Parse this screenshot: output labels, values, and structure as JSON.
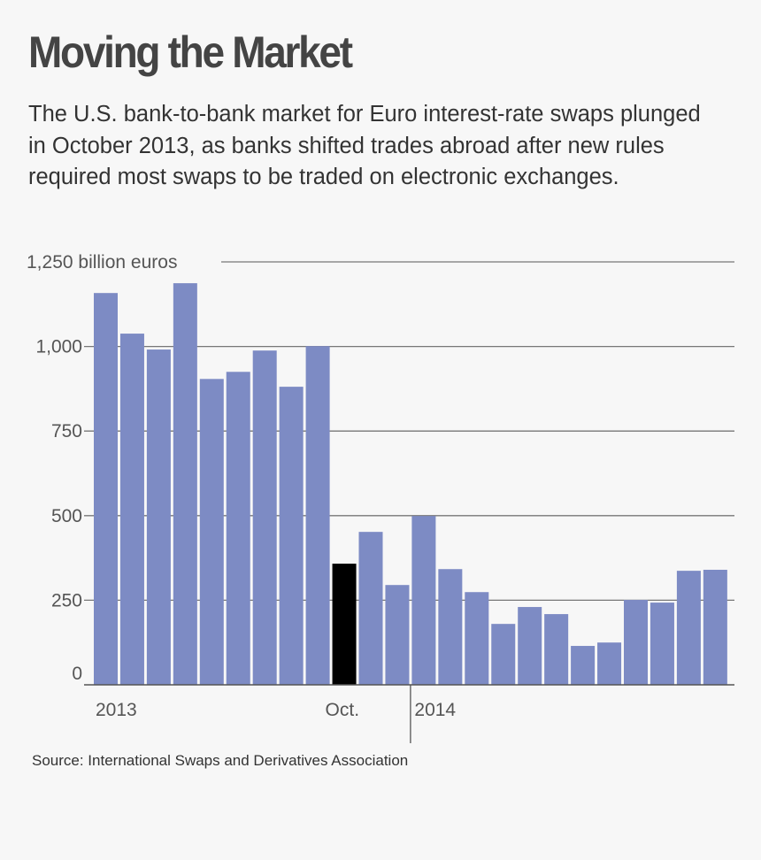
{
  "chart_data": {
    "type": "bar",
    "title": "Moving the Market",
    "subtitle": "The U.S. bank-to-bank market for Euro interest-rate swaps plunged in October 2013, as banks shifted trades abroad after new rules required most swaps to be traded on electronic exchanges.",
    "ylabel": "",
    "xlabel": "",
    "ylim": [
      0,
      1250
    ],
    "yticks": [
      {
        "value": 0,
        "label": "0"
      },
      {
        "value": 250,
        "label": "250"
      },
      {
        "value": 500,
        "label": "500"
      },
      {
        "value": 750,
        "label": "750"
      },
      {
        "value": 1000,
        "label": "1,000"
      },
      {
        "value": 1250,
        "label": "1,250 billion euros"
      }
    ],
    "grid": true,
    "categories": [
      "Jan 2013",
      "Feb 2013",
      "Mar 2013",
      "Apr 2013",
      "May 2013",
      "Jun 2013",
      "Jul 2013",
      "Aug 2013",
      "Sep 2013",
      "Oct 2013",
      "Nov 2013",
      "Dec 2013",
      "Jan 2014",
      "Feb 2014",
      "Mar 2014",
      "Apr 2014",
      "May 2014",
      "Jun 2014",
      "Jul 2014",
      "Aug 2014",
      "Sep 2014",
      "Oct 2014",
      "Nov 2014",
      "Dec 2014"
    ],
    "values": [
      1158,
      1038,
      991,
      1187,
      904,
      925,
      988,
      881,
      1001,
      358,
      452,
      295,
      499,
      342,
      274,
      180,
      230,
      209,
      115,
      125,
      251,
      243,
      337,
      340
    ],
    "highlight_index": 9,
    "xtick_labels": [
      {
        "index": 0,
        "label": "2013"
      },
      {
        "index": 9,
        "label": "Oct."
      },
      {
        "index": 12,
        "label": "2014"
      }
    ],
    "colors": {
      "bar": "#7d8bc4",
      "highlight": "#000000",
      "grid": "#777777",
      "background": "#f7f7f7"
    }
  },
  "source": "Source: International Swaps and Derivatives Association"
}
